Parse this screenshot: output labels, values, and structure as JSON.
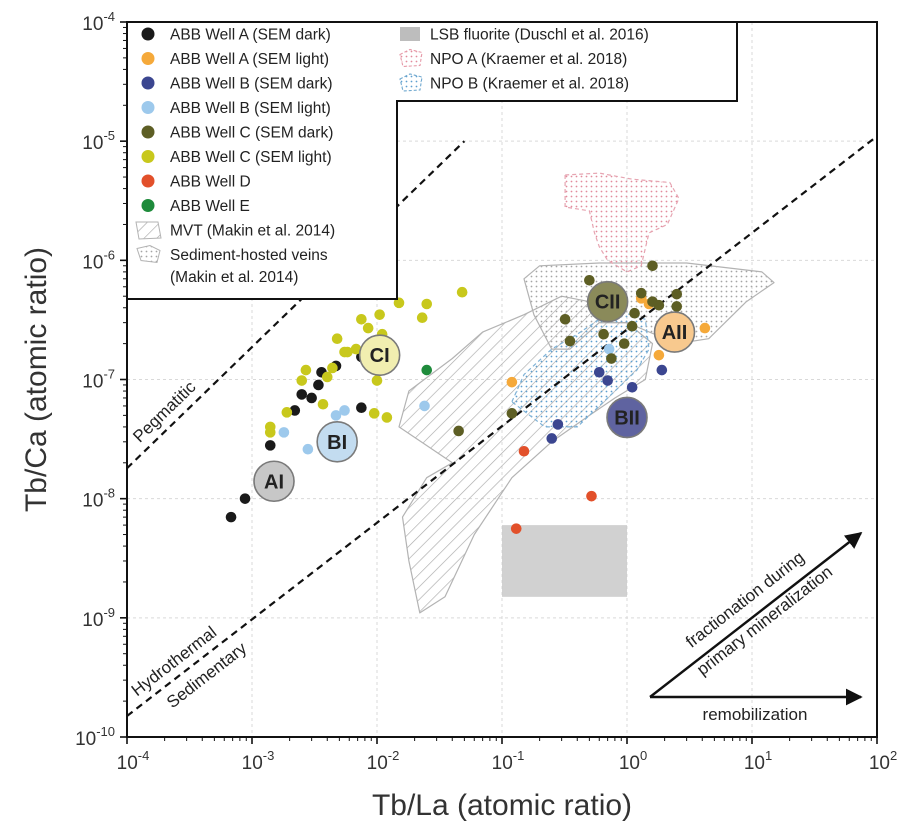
{
  "chart_data": {
    "type": "scatter",
    "xlabel": "Tb/La (atomic ratio)",
    "ylabel": "Tb/Ca (atomic ratio)",
    "xscale": "log",
    "yscale": "log",
    "xlim": [
      0.0001,
      100
    ],
    "ylim": [
      1e-10,
      0.0001
    ],
    "grid": true,
    "legend_position": "top-left",
    "x_ticks": [
      {
        "base": "10",
        "exp": "-4"
      },
      {
        "base": "10",
        "exp": "-3"
      },
      {
        "base": "10",
        "exp": "-2"
      },
      {
        "base": "10",
        "exp": "-1"
      },
      {
        "base": "10",
        "exp": "0"
      },
      {
        "base": "10",
        "exp": "1"
      },
      {
        "base": "10",
        "exp": "2"
      }
    ],
    "y_ticks": [
      {
        "base": "10",
        "exp": "-10"
      },
      {
        "base": "10",
        "exp": "-9"
      },
      {
        "base": "10",
        "exp": "-8"
      },
      {
        "base": "10",
        "exp": "-7"
      },
      {
        "base": "10",
        "exp": "-6"
      },
      {
        "base": "10",
        "exp": "-5"
      },
      {
        "base": "10",
        "exp": "-4"
      }
    ],
    "legend_col1": [
      {
        "name": "ABB Well A (SEM dark)",
        "symbol": "dot",
        "color": "#1a1a1a"
      },
      {
        "name": "ABB Well A (SEM light)",
        "symbol": "dot",
        "color": "#f5a93a"
      },
      {
        "name": "ABB Well B (SEM dark)",
        "symbol": "dot",
        "color": "#3b4690"
      },
      {
        "name": "ABB Well B (SEM light)",
        "symbol": "dot",
        "color": "#9dc9ec"
      },
      {
        "name": "ABB Well C (SEM dark)",
        "symbol": "dot",
        "color": "#5d5e24"
      },
      {
        "name": "ABB Well C (SEM light)",
        "symbol": "dot",
        "color": "#c8c81c"
      },
      {
        "name": "ABB Well D",
        "symbol": "dot",
        "color": "#e2502a"
      },
      {
        "name": "ABB Well E",
        "symbol": "dot",
        "color": "#1e8b3b"
      },
      {
        "name": "MVT (Makin et al. 2014)",
        "symbol": "hatch",
        "color": "#999999"
      },
      {
        "name": "Sediment-hosted veins",
        "name2": "(Makin et al. 2014)",
        "symbol": "dotted",
        "color": "#999999"
      }
    ],
    "legend_col2": [
      {
        "name": "LSB fluorite (Duschl et al. 2016)",
        "symbol": "rect",
        "color": "#bdbdbd"
      },
      {
        "name": "NPO A (Kraemer et al. 2018)",
        "symbol": "pinkdots",
        "color": "#e69aa8"
      },
      {
        "name": "NPO B (Kraemer et al. 2018)",
        "symbol": "bluedots",
        "color": "#6fa8cf"
      }
    ],
    "series": [
      {
        "name": "ABB Well A (SEM dark)",
        "color": "#1a1a1a",
        "points": [
          [
            0.00068,
            7e-09
          ],
          [
            0.00088,
            1e-08
          ],
          [
            0.0014,
            2.8e-08
          ],
          [
            0.0022,
            5.5e-08
          ],
          [
            0.0025,
            7.5e-08
          ],
          [
            0.003,
            7e-08
          ],
          [
            0.0034,
            9e-08
          ],
          [
            0.0036,
            1.15e-07
          ],
          [
            0.0047,
            1.3e-07
          ],
          [
            0.0075,
            1.55e-07
          ],
          [
            0.0075,
            5.8e-08
          ]
        ]
      },
      {
        "name": "ABB Well A (SEM light)",
        "color": "#f5a93a",
        "points": [
          [
            0.12,
            9.5e-08
          ],
          [
            1.3,
            4.8e-07
          ],
          [
            1.5,
            4.3e-07
          ],
          [
            1.8,
            1.6e-07
          ],
          [
            2.2,
            2.4e-07
          ],
          [
            4.2,
            2.7e-07
          ]
        ]
      },
      {
        "name": "ABB Well B (SEM dark)",
        "color": "#3b4690",
        "points": [
          [
            0.25,
            3.2e-08
          ],
          [
            0.28,
            4.2e-08
          ],
          [
            0.6,
            1.15e-07
          ],
          [
            0.7,
            9.8e-08
          ],
          [
            1.1,
            8.6e-08
          ],
          [
            1.9,
            1.2e-07
          ]
        ]
      },
      {
        "name": "ABB Well B (SEM light)",
        "color": "#9dc9ec",
        "points": [
          [
            0.0018,
            3.6e-08
          ],
          [
            0.0028,
            2.6e-08
          ],
          [
            0.0047,
            5e-08
          ],
          [
            0.0055,
            5.5e-08
          ],
          [
            0.024,
            6e-08
          ],
          [
            0.72,
            1.8e-07
          ]
        ]
      },
      {
        "name": "ABB Well C (SEM dark)",
        "color": "#5d5e24",
        "points": [
          [
            0.045,
            3.7e-08
          ],
          [
            0.12,
            5.2e-08
          ],
          [
            0.32,
            3.2e-07
          ],
          [
            0.35,
            2.1e-07
          ],
          [
            0.5,
            6.8e-07
          ],
          [
            0.55,
            4.1e-07
          ],
          [
            0.65,
            2.4e-07
          ],
          [
            0.75,
            1.5e-07
          ],
          [
            0.95,
            2e-07
          ],
          [
            1.1,
            2.8e-07
          ],
          [
            1.15,
            3.6e-07
          ],
          [
            1.3,
            5.3e-07
          ],
          [
            1.6,
            9e-07
          ],
          [
            1.6,
            4.5e-07
          ],
          [
            1.8,
            4.2e-07
          ],
          [
            2.5,
            5.2e-07
          ],
          [
            2.5,
            4.1e-07
          ]
        ]
      },
      {
        "name": "ABB Well C (SEM light)",
        "color": "#c8c81c",
        "points": [
          [
            0.0014,
            3.6e-08
          ],
          [
            0.0014,
            4e-08
          ],
          [
            0.0019,
            5.3e-08
          ],
          [
            0.0025,
            9.8e-08
          ],
          [
            0.0027,
            1.2e-07
          ],
          [
            0.0037,
            6.2e-08
          ],
          [
            0.004,
            1.05e-07
          ],
          [
            0.0044,
            1.25e-07
          ],
          [
            0.0048,
            2.2e-07
          ],
          [
            0.0055,
            1.7e-07
          ],
          [
            0.0058,
            1.7e-07
          ],
          [
            0.0068,
            1.8e-07
          ],
          [
            0.0075,
            3.2e-07
          ],
          [
            0.0085,
            2.7e-07
          ],
          [
            0.0095,
            5.2e-08
          ],
          [
            0.01,
            9.8e-08
          ],
          [
            0.0105,
            3.5e-07
          ],
          [
            0.011,
            2.4e-07
          ],
          [
            0.012,
            4.8e-08
          ],
          [
            0.015,
            4.4e-07
          ],
          [
            0.023,
            3.3e-07
          ],
          [
            0.025,
            4.3e-07
          ],
          [
            0.048,
            5.4e-07
          ]
        ]
      },
      {
        "name": "ABB Well D",
        "color": "#e2502a",
        "points": [
          [
            0.13,
            5.6e-09
          ],
          [
            0.15,
            2.5e-08
          ],
          [
            0.52,
            1.05e-08
          ]
        ]
      },
      {
        "name": "ABB Well E",
        "color": "#1e8b3b",
        "points": [
          [
            0.025,
            1.2e-07
          ]
        ]
      }
    ],
    "regions": [
      {
        "name": "LSB fluorite",
        "style": "rect",
        "x": [
          0.1,
          1
        ],
        "y": [
          1.5e-09,
          6e-09
        ]
      },
      {
        "name": "MVT",
        "style": "hatch",
        "polygon": [
          [
            0.04,
            2e-08
          ],
          [
            0.015,
            4e-08
          ],
          [
            0.018,
            8e-08
          ],
          [
            0.04,
            1.5e-07
          ],
          [
            0.07,
            2.5e-07
          ],
          [
            0.15,
            3.5e-07
          ],
          [
            0.3,
            5e-07
          ],
          [
            0.5,
            4.5e-07
          ],
          [
            0.6,
            3e-07
          ],
          [
            1,
            3e-07
          ],
          [
            1.6,
            2e-07
          ],
          [
            1.4,
            1e-07
          ],
          [
            0.8,
            7e-08
          ],
          [
            0.5,
            5e-08
          ],
          [
            0.25,
            3e-08
          ],
          [
            0.12,
            1.5e-08
          ],
          [
            0.06,
            5e-09
          ],
          [
            0.035,
            1.5e-09
          ],
          [
            0.022,
            1.1e-09
          ],
          [
            0.018,
            3e-09
          ],
          [
            0.016,
            7e-09
          ],
          [
            0.025,
            1.5e-08
          ]
        ]
      },
      {
        "name": "Sediment-hosted veins",
        "style": "dotted",
        "polygon": [
          [
            0.25,
            1.8e-07
          ],
          [
            0.18,
            3.5e-07
          ],
          [
            0.15,
            7e-07
          ],
          [
            0.2,
            9e-07
          ],
          [
            0.6,
            9.5e-07
          ],
          [
            3,
            9.5e-07
          ],
          [
            12,
            8e-07
          ],
          [
            15,
            6.5e-07
          ],
          [
            9,
            4.5e-07
          ],
          [
            4.5,
            2.2e-07
          ],
          [
            2.5,
            2e-07
          ],
          [
            1,
            3e-07
          ],
          [
            0.6,
            3e-07
          ],
          [
            0.35,
            1.8e-07
          ]
        ]
      },
      {
        "name": "NPO A",
        "style": "pinkdots",
        "polygon": [
          [
            0.32,
            5.2e-06
          ],
          [
            0.32,
            2.8e-06
          ],
          [
            0.5,
            2.6e-06
          ],
          [
            0.55,
            1.7e-06
          ],
          [
            0.6,
            1.3e-06
          ],
          [
            0.7,
            1e-06
          ],
          [
            1,
            8e-07
          ],
          [
            1.3,
            9e-07
          ],
          [
            1.5,
            1.7e-06
          ],
          [
            2.1,
            2e-06
          ],
          [
            2.6,
            3.3e-06
          ],
          [
            2.2,
            4.5e-06
          ],
          [
            1.1,
            4.8e-06
          ],
          [
            0.6,
            5.4e-06
          ]
        ]
      },
      {
        "name": "NPO B",
        "style": "bluedots",
        "polygon": [
          [
            0.12,
            6.5e-08
          ],
          [
            0.15,
            1.1e-07
          ],
          [
            0.25,
            1.8e-07
          ],
          [
            0.4,
            2.4e-07
          ],
          [
            0.6,
            3.2e-07
          ],
          [
            0.9,
            3.7e-07
          ],
          [
            1.4,
            3.2e-07
          ],
          [
            1.5,
            1.8e-07
          ],
          [
            1.2,
            1.2e-07
          ],
          [
            0.7,
            7e-08
          ],
          [
            0.4,
            4e-08
          ],
          [
            0.22,
            4e-08
          ]
        ]
      }
    ],
    "clusters": [
      {
        "label": "AI",
        "x": 0.0015,
        "y": 1.4e-08,
        "fill": "#c7c7c7"
      },
      {
        "label": "BI",
        "x": 0.0048,
        "y": 3e-08,
        "fill": "#c3dcf0"
      },
      {
        "label": "CI",
        "x": 0.0105,
        "y": 1.6e-07,
        "fill": "#f1eeb0"
      },
      {
        "label": "AII",
        "x": 2.4,
        "y": 2.5e-07,
        "fill": "#f8c98e"
      },
      {
        "label": "BII",
        "x": 1.0,
        "y": 4.8e-08,
        "fill": "#5f63a0"
      },
      {
        "label": "CII",
        "x": 0.7,
        "y": 4.5e-07,
        "fill": "#8a8a5a"
      }
    ],
    "reference_lines": [
      {
        "name": "Pegmatitic",
        "points": [
          [
            0.0001,
            1.8e-08
          ],
          [
            0.05,
            1e-05
          ]
        ]
      },
      {
        "name": "Hydrothermal / Sedimentary",
        "points": [
          [
            0.0001,
            1.5e-10
          ],
          [
            100,
            1.1e-05
          ]
        ]
      }
    ],
    "annotations": {
      "pegmatitic": "Pegmatitic",
      "hydrothermal": "Hydrothermal",
      "sedimentary": "Sedimentary",
      "fractionation_line1": "fractionation during",
      "fractionation_line2": "primary mineralization",
      "remobilization": "remobilization"
    }
  }
}
